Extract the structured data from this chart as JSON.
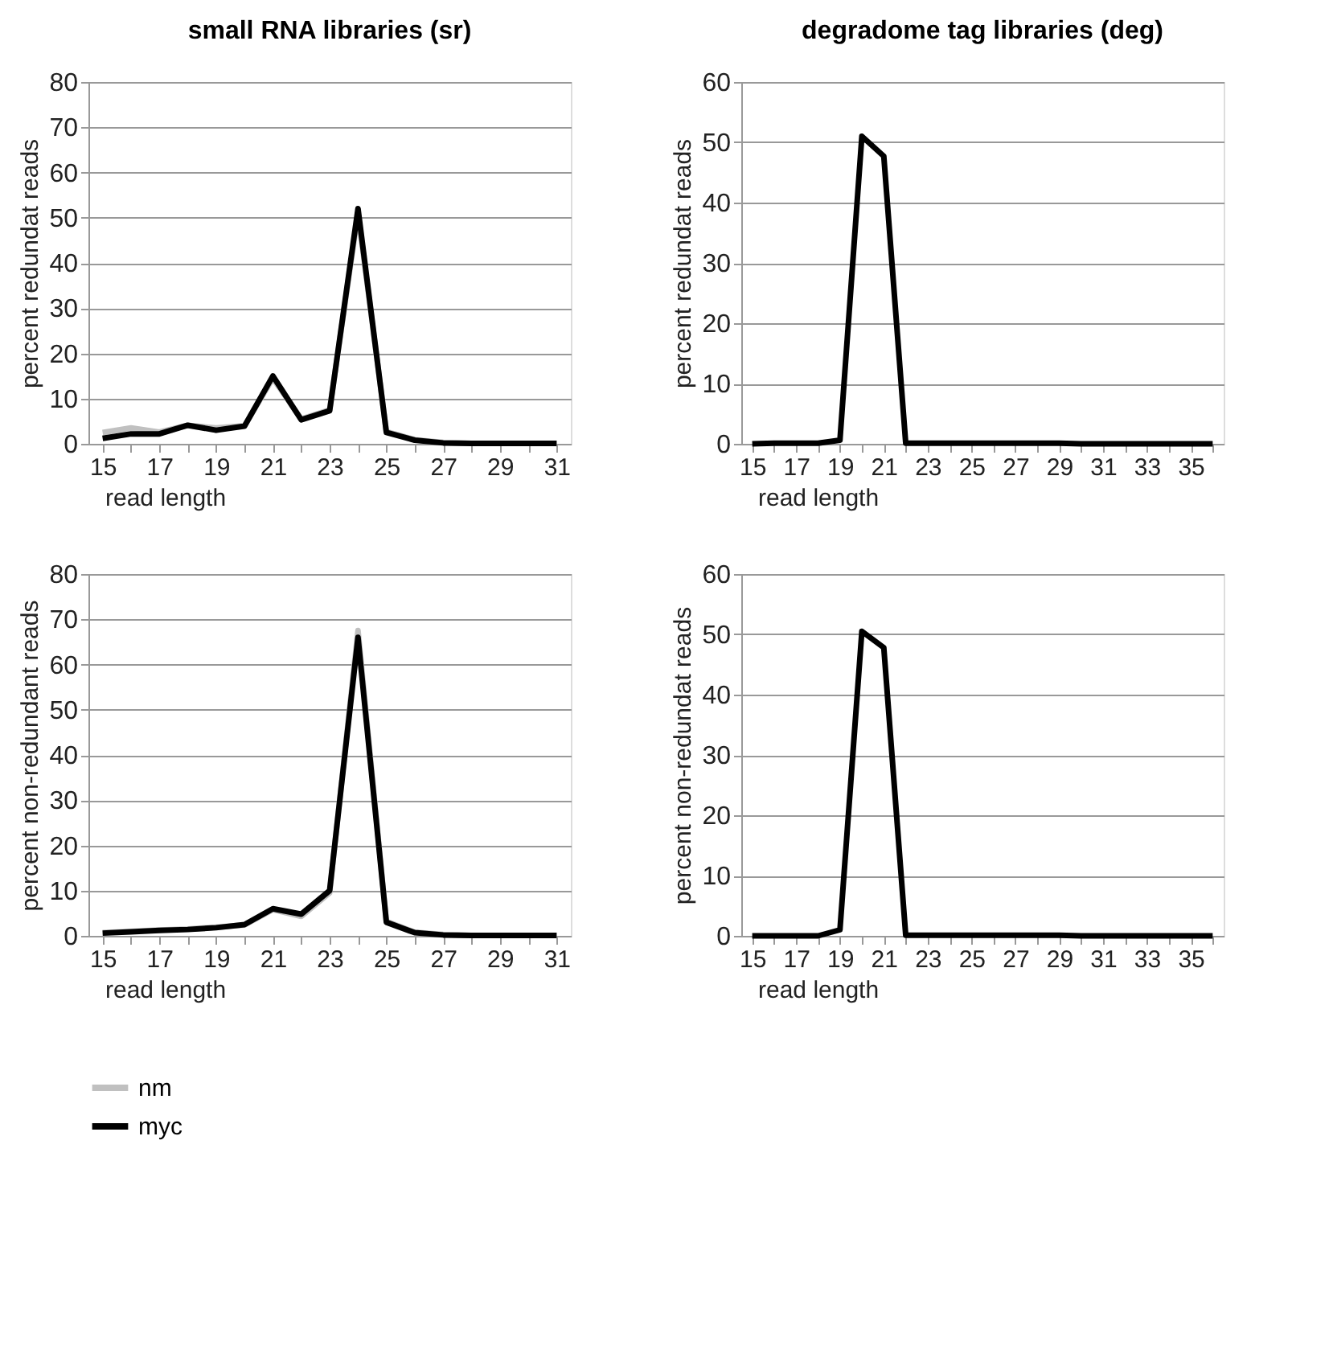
{
  "chart_data": [
    {
      "type": "line",
      "title": "small RNA libraries (sr)",
      "xlabel": "read length",
      "ylabel": "percent redundat reads",
      "categories": [
        "15",
        null,
        "17",
        null,
        "19",
        null,
        "21",
        null,
        "23",
        null,
        "25",
        null,
        "27",
        null,
        "29",
        null,
        "31"
      ],
      "ylim": [
        0,
        80
      ],
      "yticks": [
        0,
        10,
        20,
        30,
        40,
        50,
        60,
        70,
        80
      ],
      "grid": "y",
      "legend": false,
      "marker": "none",
      "line_style": "solid",
      "series": [
        {
          "color": "#c0c0c0",
          "values": [
            2.5,
            3.5,
            2.6,
            4.1,
            3.5,
            4,
            14.5,
            5.5,
            7.5,
            51,
            2.7,
            0.9,
            0.3,
            0.1,
            0.1,
            0.1,
            0.1
          ]
        },
        {
          "color": "#000000",
          "values": [
            1.2,
            2.2,
            2.2,
            4.1,
            3,
            3.9,
            15,
            5.3,
            7.3,
            52,
            2.5,
            0.8,
            0.2,
            0.1,
            0.1,
            0.1,
            0.1
          ]
        }
      ]
    },
    {
      "type": "line",
      "title": "degradome tag libraries (deg)",
      "xlabel": "read length",
      "ylabel": "percent redundat reads",
      "categories": [
        "15",
        null,
        "17",
        null,
        "19",
        null,
        "21",
        null,
        "23",
        null,
        "25",
        null,
        "27",
        null,
        "29",
        null,
        "31",
        null,
        "33",
        null,
        "35",
        null
      ],
      "ylim": [
        0,
        60
      ],
      "yticks": [
        0,
        10,
        20,
        30,
        40,
        50,
        60
      ],
      "grid": "y",
      "legend": false,
      "marker": "none",
      "line_style": "solid",
      "series": [
        {
          "color": "#000000",
          "values": [
            0,
            0.1,
            0.1,
            0.1,
            0.6,
            51,
            47.7,
            0.1,
            0.1,
            0.1,
            0.1,
            0.1,
            0.1,
            0.1,
            0.1,
            0,
            0,
            0,
            0,
            0,
            0,
            0
          ]
        }
      ]
    },
    {
      "type": "line",
      "xlabel": "read length",
      "ylabel": "percent non-redundant reads",
      "categories": [
        "15",
        null,
        "17",
        null,
        "19",
        null,
        "21",
        null,
        "23",
        null,
        "25",
        null,
        "27",
        null,
        "29",
        null,
        "31"
      ],
      "ylim": [
        0,
        80
      ],
      "yticks": [
        0,
        10,
        20,
        30,
        40,
        50,
        60,
        70,
        80
      ],
      "grid": "y",
      "legend": "bottom",
      "marker": "none",
      "line_style": "solid",
      "series": [
        {
          "name": "nm",
          "color": "#c0c0c0",
          "values": [
            0.7,
            1,
            1.3,
            1.5,
            1.9,
            2.4,
            5.8,
            4.3,
            9.5,
            67.5,
            3.2,
            0.8,
            0.3,
            0.1,
            0.1,
            0.1,
            0.1
          ]
        },
        {
          "name": "myc",
          "color": "#000000",
          "values": [
            0.6,
            0.9,
            1.2,
            1.4,
            1.8,
            2.5,
            6,
            4.8,
            10,
            66,
            3,
            0.7,
            0.2,
            0.1,
            0.1,
            0.1,
            0.1
          ]
        }
      ]
    },
    {
      "type": "line",
      "xlabel": "read length",
      "ylabel": "percent non-redundat reads",
      "categories": [
        "15",
        null,
        "17",
        null,
        "19",
        null,
        "21",
        null,
        "23",
        null,
        "25",
        null,
        "27",
        null,
        "29",
        null,
        "31",
        null,
        "33",
        null,
        "35",
        null
      ],
      "ylim": [
        0,
        60
      ],
      "yticks": [
        0,
        10,
        20,
        30,
        40,
        50,
        60
      ],
      "grid": "y",
      "legend": false,
      "marker": "none",
      "line_style": "solid",
      "series": [
        {
          "color": "#000000",
          "values": [
            0,
            0,
            0,
            0,
            1,
            50.5,
            47.8,
            0.1,
            0.1,
            0.1,
            0.1,
            0.1,
            0.1,
            0.1,
            0.1,
            0,
            0,
            0,
            0,
            0,
            0,
            0
          ]
        }
      ]
    }
  ]
}
